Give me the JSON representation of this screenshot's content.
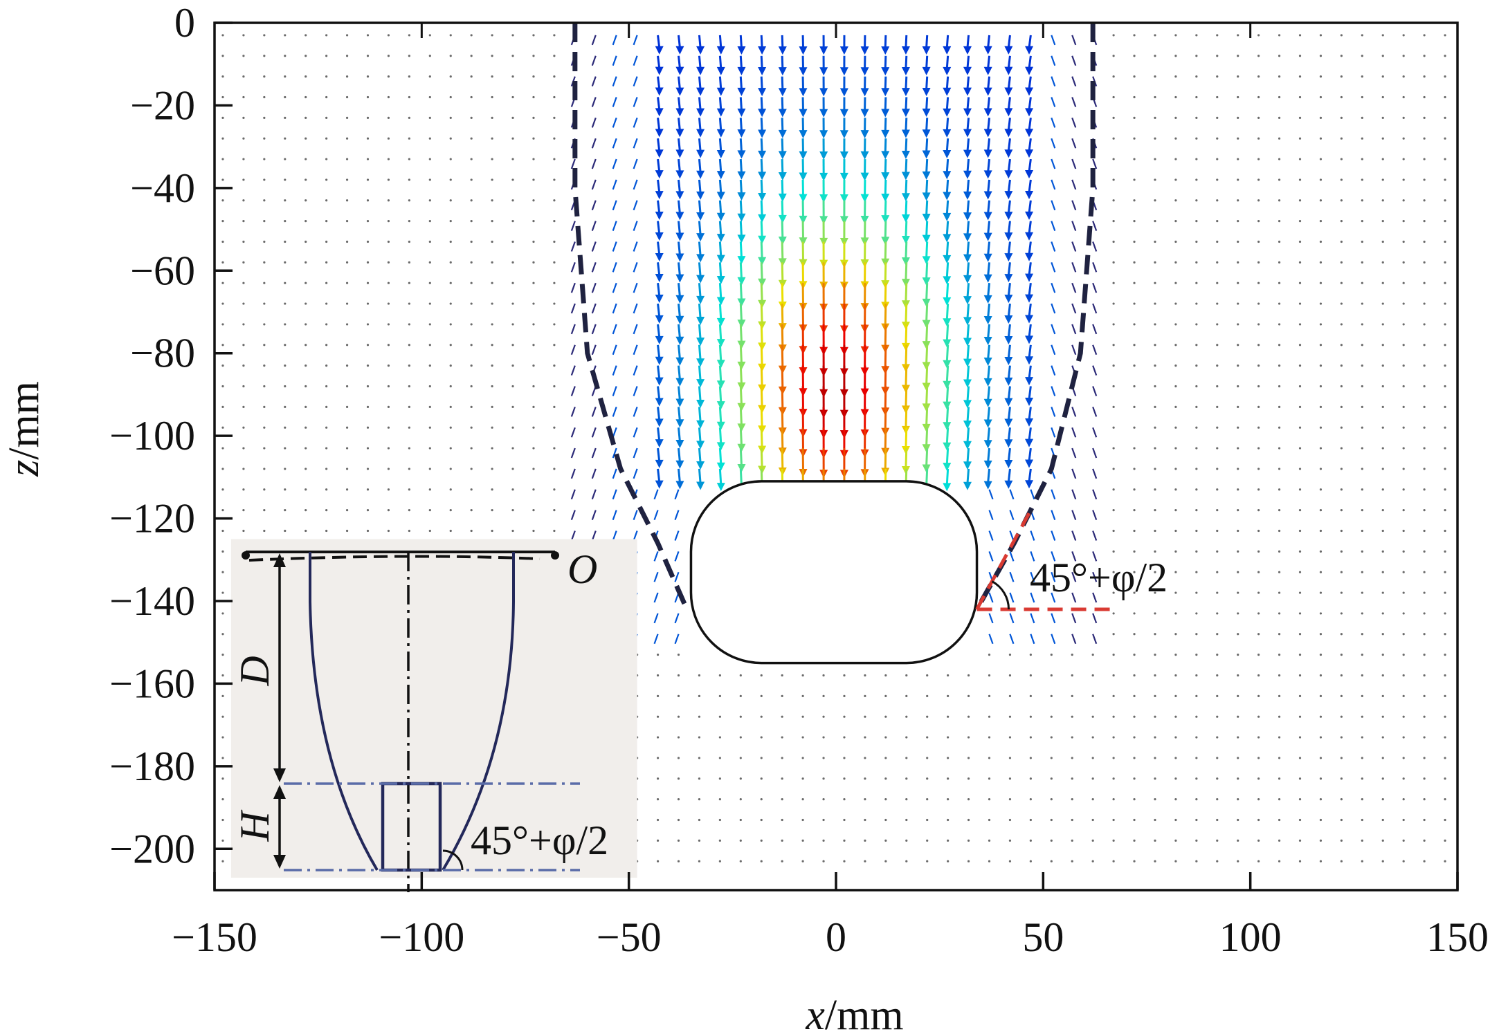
{
  "chart_data": {
    "type": "vector-field",
    "xlabel": {
      "var": "x",
      "unit": "/mm"
    },
    "ylabel": {
      "var": "z",
      "unit": "/mm"
    },
    "xlim": [
      -150,
      150
    ],
    "ylim": [
      -210,
      0
    ],
    "x_ticks": [
      -150,
      -100,
      -50,
      0,
      50,
      100,
      150
    ],
    "x_tick_labels": [
      "−150",
      "−100",
      "−50",
      "0",
      "50",
      "100",
      "150"
    ],
    "y_ticks": [
      0,
      -20,
      -40,
      -60,
      -80,
      -100,
      -120,
      -140,
      -160,
      -180,
      -200
    ],
    "y_tick_labels": [
      "0",
      "−20",
      "−40",
      "−60",
      "−80",
      "−100",
      "−120",
      "−140",
      "−160",
      "−180",
      "−200"
    ],
    "grid": false,
    "vector_field": {
      "x_range": [
        -148,
        148
      ],
      "z_range": [
        -3,
        -206
      ],
      "grid_step_mm": 5,
      "colormap": "jet",
      "flow_direction": "downward",
      "peak_zone": {
        "x_center": 0,
        "z_center": -85
      }
    },
    "obstacle": {
      "shape": "rounded-rectangle",
      "x_range": [
        -35,
        34
      ],
      "z_range": [
        -111,
        -155
      ],
      "corner_radius_mm": 17
    },
    "failure_boundary": {
      "style": "dashed",
      "color": "#1f2240",
      "left": [
        [
          -63,
          0
        ],
        [
          -63,
          -40
        ],
        [
          -60,
          -80
        ],
        [
          -52,
          -108
        ],
        [
          -43,
          -126
        ],
        [
          -36,
          -142
        ]
      ],
      "right": [
        [
          62,
          0
        ],
        [
          62,
          -40
        ],
        [
          59,
          -80
        ],
        [
          52,
          -108
        ],
        [
          43,
          -126
        ],
        [
          34,
          -142
        ]
      ]
    },
    "angle_marker": {
      "label": "45°+φ/2",
      "vertex": [
        34,
        -142
      ],
      "horizontal_to_x": 68,
      "slope_to": [
        47,
        -118
      ],
      "color": "#d93a32"
    },
    "inset": {
      "x_range": [
        -146,
        -48
      ],
      "z_range": [
        -125,
        -207
      ],
      "labels": {
        "origin": "O",
        "depth": "D",
        "height": "H",
        "angle": "45°+φ/2"
      },
      "background": "#f1eeeb"
    }
  }
}
